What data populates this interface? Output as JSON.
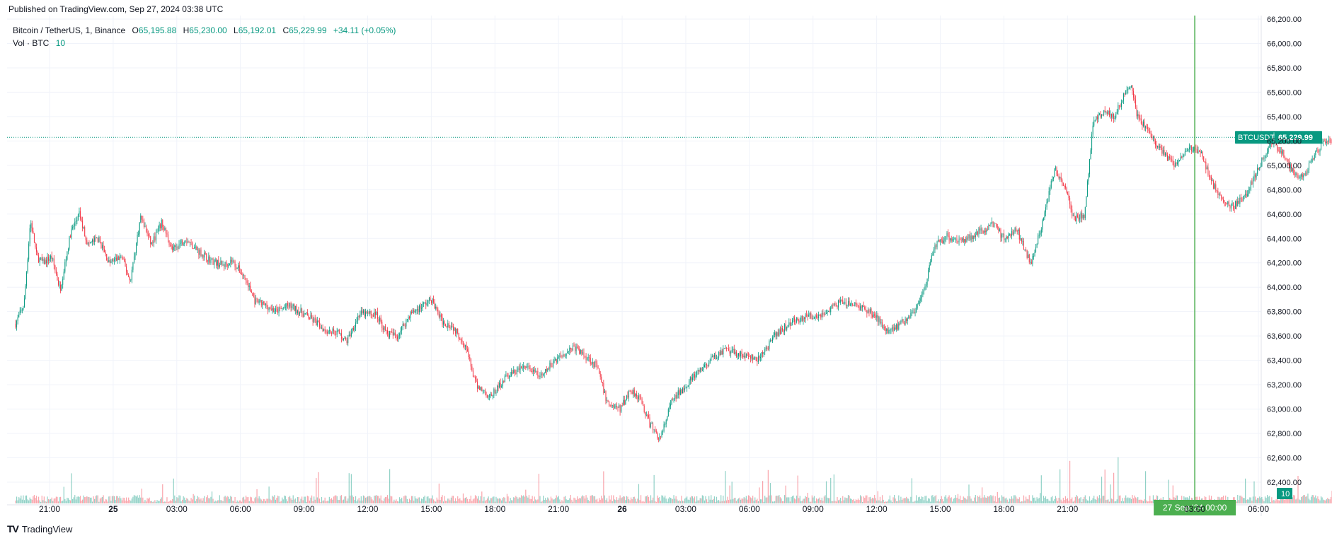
{
  "published": "Published on TradingView.com, Sep 27, 2024 03:38 UTC",
  "legend": {
    "symbol": "Bitcoin / TetherUS, 1, Binance",
    "o_label": "O",
    "o_value": "65,195.88",
    "h_label": "H",
    "h_value": "65,230.00",
    "l_label": "L",
    "l_value": "65,192.01",
    "c_label": "C",
    "c_value": "65,229.99",
    "change": "+34.11 (+0.05%)",
    "vol_label": "Vol · BTC",
    "vol_value": "10"
  },
  "footer": {
    "brand": "TradingView",
    "logo_icon": "tradingview-logo-icon"
  },
  "colors": {
    "up": "#089981",
    "down": "#f23645",
    "crosshair": "#4caf50",
    "grid": "#f0f3fa",
    "price_tag": "#089981"
  },
  "chart_data": {
    "type": "candlestick",
    "symbol_tag": "BTCUSDT",
    "last_price": 65229.99,
    "last_price_label": "65,229.99",
    "volume_tag": "10",
    "crosshair_label": "27 Sep '24   00:00",
    "crosshair_hour": 27,
    "y_range": [
      62350,
      66230
    ],
    "y_ticks": [
      {
        "v": 62400,
        "label": "62,400.00"
      },
      {
        "v": 62600,
        "label": "62,600.00"
      },
      {
        "v": 62800,
        "label": "62,800.00"
      },
      {
        "v": 63000,
        "label": "63,000.00"
      },
      {
        "v": 63200,
        "label": "63,200.00"
      },
      {
        "v": 63400,
        "label": "63,400.00"
      },
      {
        "v": 63600,
        "label": "63,600.00"
      },
      {
        "v": 63800,
        "label": "63,800.00"
      },
      {
        "v": 64000,
        "label": "64,000.00"
      },
      {
        "v": 64200,
        "label": "64,200.00"
      },
      {
        "v": 64400,
        "label": "64,400.00"
      },
      {
        "v": 64600,
        "label": "64,600.00"
      },
      {
        "v": 64800,
        "label": "64,800.00"
      },
      {
        "v": 65000,
        "label": "65,000.00"
      },
      {
        "v": 65200,
        "label": "65,200.00"
      },
      {
        "v": 65400,
        "label": "65,400.00"
      },
      {
        "v": 65600,
        "label": "65,600.00"
      },
      {
        "v": 65800,
        "label": "65,800.00"
      },
      {
        "v": 66000,
        "label": "66,000.00"
      },
      {
        "v": 66200,
        "label": "66,200.00"
      }
    ],
    "x_range_hours": [
      -4.6,
      31.2
    ],
    "x_ticks": [
      {
        "h": -3,
        "label": "21:00"
      },
      {
        "h": 0,
        "label": "25",
        "bold": true
      },
      {
        "h": 3,
        "label": "03:00"
      },
      {
        "h": 6,
        "label": "06:00"
      },
      {
        "h": 9,
        "label": "09:00"
      },
      {
        "h": 12,
        "label": "12:00"
      },
      {
        "h": 15,
        "label": "15:00"
      },
      {
        "h": 18,
        "label": "18:00"
      },
      {
        "h": 21,
        "label": "21:00"
      },
      {
        "h": 24,
        "label": "26",
        "bold": true
      },
      {
        "h": 27,
        "label": "03:00"
      },
      {
        "h": 30,
        "label": "06:00"
      },
      {
        "h": 33,
        "label": "09:00"
      },
      {
        "h": 36,
        "label": "12:00"
      },
      {
        "h": 39,
        "label": "15:00"
      },
      {
        "h": 42,
        "label": "18:00"
      },
      {
        "h": 45,
        "label": "21:00"
      },
      {
        "h": 51,
        "label": "03:00"
      },
      {
        "h": 54,
        "label": "06:00"
      }
    ],
    "price_path": [
      [
        -4.6,
        63700
      ],
      [
        -4.2,
        63860
      ],
      [
        -3.9,
        64550
      ],
      [
        -3.6,
        64250
      ],
      [
        -3.3,
        64200
      ],
      [
        -2.9,
        64250
      ],
      [
        -2.5,
        63980
      ],
      [
        -2.0,
        64450
      ],
      [
        -1.6,
        64600
      ],
      [
        -1.2,
        64350
      ],
      [
        -0.7,
        64400
      ],
      [
        -0.2,
        64200
      ],
      [
        0.4,
        64250
      ],
      [
        0.8,
        64050
      ],
      [
        1.3,
        64580
      ],
      [
        1.8,
        64350
      ],
      [
        2.3,
        64530
      ],
      [
        2.8,
        64300
      ],
      [
        3.4,
        64400
      ],
      [
        4.0,
        64300
      ],
      [
        4.6,
        64220
      ],
      [
        5.2,
        64180
      ],
      [
        5.6,
        64220
      ],
      [
        6.2,
        64080
      ],
      [
        6.7,
        63880
      ],
      [
        7.2,
        63850
      ],
      [
        7.7,
        63800
      ],
      [
        8.3,
        63850
      ],
      [
        9.0,
        63780
      ],
      [
        9.5,
        63720
      ],
      [
        10.0,
        63650
      ],
      [
        10.6,
        63630
      ],
      [
        11.0,
        63550
      ],
      [
        11.6,
        63780
      ],
      [
        12.4,
        63780
      ],
      [
        12.9,
        63620
      ],
      [
        13.4,
        63600
      ],
      [
        14.0,
        63780
      ],
      [
        14.6,
        63850
      ],
      [
        15.0,
        63900
      ],
      [
        15.5,
        63720
      ],
      [
        16.0,
        63680
      ],
      [
        16.6,
        63530
      ],
      [
        17.1,
        63200
      ],
      [
        17.8,
        63100
      ],
      [
        18.5,
        63260
      ],
      [
        19.4,
        63350
      ],
      [
        20.2,
        63260
      ],
      [
        20.8,
        63400
      ],
      [
        21.7,
        63510
      ],
      [
        22.4,
        63420
      ],
      [
        22.8,
        63350
      ],
      [
        23.3,
        63050
      ],
      [
        23.9,
        63000
      ],
      [
        24.4,
        63160
      ],
      [
        24.8,
        63100
      ],
      [
        25.3,
        62880
      ],
      [
        25.8,
        62750
      ],
      [
        26.3,
        63050
      ],
      [
        27.0,
        63200
      ],
      [
        27.6,
        63300
      ],
      [
        28.3,
        63420
      ],
      [
        28.8,
        63480
      ],
      [
        29.6,
        63450
      ],
      [
        30.4,
        63400
      ],
      [
        31.2,
        63600
      ]
    ],
    "extra_segment_comment": "",
    "price_path_2": [
      [
        31.2,
        63600
      ],
      [
        32.0,
        63720
      ],
      [
        32.8,
        63760
      ],
      [
        33.5,
        63780
      ],
      [
        34.2,
        63870
      ],
      [
        34.8,
        63860
      ],
      [
        35.4,
        63830
      ],
      [
        36.0,
        63750
      ],
      [
        36.5,
        63650
      ],
      [
        37.0,
        63680
      ],
      [
        37.6,
        63780
      ],
      [
        38.0,
        63850
      ],
      [
        38.3,
        64000
      ],
      [
        38.7,
        64330
      ],
      [
        39.3,
        64420
      ],
      [
        40.0,
        64380
      ],
      [
        40.6,
        64430
      ],
      [
        41.0,
        64470
      ],
      [
        41.5,
        64520
      ],
      [
        42.0,
        64400
      ],
      [
        42.6,
        64480
      ],
      [
        43.0,
        64300
      ],
      [
        43.3,
        64200
      ],
      [
        43.8,
        64520
      ],
      [
        44.4,
        64980
      ],
      [
        44.9,
        64820
      ],
      [
        45.3,
        64550
      ],
      [
        45.8,
        64600
      ],
      [
        46.2,
        65350
      ],
      [
        46.7,
        65450
      ],
      [
        47.2,
        65400
      ],
      [
        47.6,
        65550
      ],
      [
        48.0,
        65650
      ],
      [
        48.3,
        65400
      ],
      [
        48.9,
        65250
      ],
      [
        49.5,
        65100
      ],
      [
        50.1,
        65000
      ],
      [
        50.7,
        65150
      ],
      [
        51.3,
        65100
      ],
      [
        51.7,
        64900
      ],
      [
        52.3,
        64700
      ],
      [
        52.8,
        64660
      ],
      [
        53.4,
        64760
      ],
      [
        54.0,
        64980
      ],
      [
        54.6,
        65180
      ],
      [
        55.1,
        65120
      ],
      [
        55.6,
        64950
      ],
      [
        56.1,
        64900
      ],
      [
        56.6,
        65080
      ],
      [
        57.1,
        65200
      ],
      [
        57.7,
        65220
      ],
      [
        58.2,
        65300
      ],
      [
        58.6,
        65250
      ],
      [
        59.1,
        65150
      ],
      [
        59.6,
        65050
      ],
      [
        60.1,
        64950
      ],
      [
        60.6,
        64880
      ],
      [
        61.1,
        65000
      ],
      [
        61.5,
        65229.99
      ]
    ]
  }
}
